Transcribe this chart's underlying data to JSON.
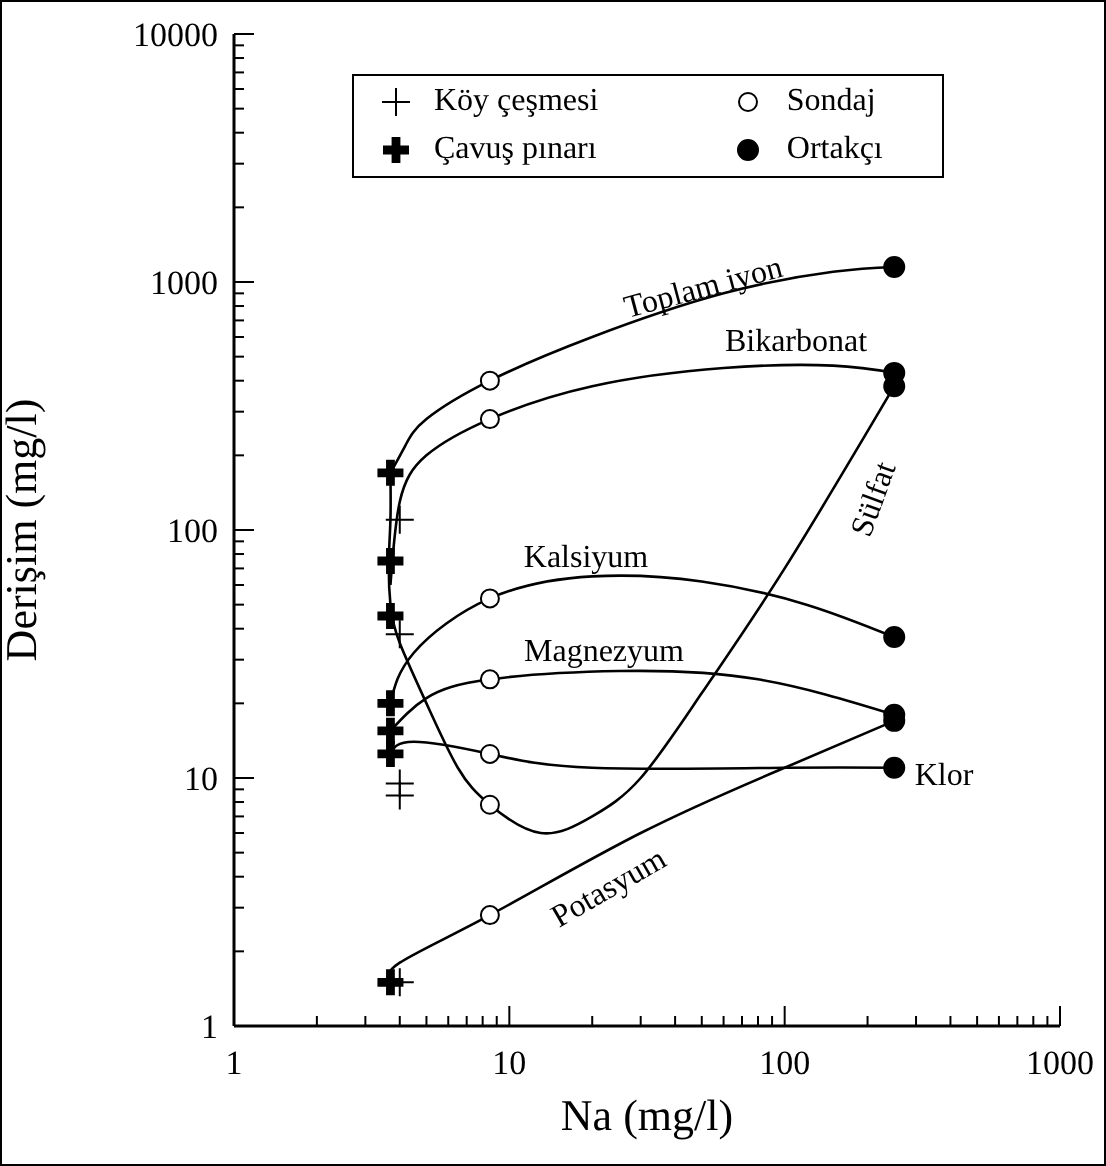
{
  "chart_data": {
    "type": "scatter",
    "xlabel": "Na (mg/l)",
    "ylabel": "Derişim (mg/l)",
    "log": "xy",
    "grid": false,
    "legend": "top",
    "xlim": [
      1,
      1000
    ],
    "xticks": [
      1,
      {
        "value": 2,
        "label": null
      },
      {
        "value": 3,
        "label": null
      },
      {
        "value": 4,
        "label": null
      },
      {
        "value": 5,
        "label": null
      },
      {
        "value": 6,
        "label": null
      },
      {
        "value": 7,
        "label": null
      },
      {
        "value": 8,
        "label": null
      },
      {
        "value": 9,
        "label": null
      },
      10,
      {
        "value": 20,
        "label": null
      },
      {
        "value": 30,
        "label": null
      },
      {
        "value": 40,
        "label": null
      },
      {
        "value": 50,
        "label": null
      },
      {
        "value": 60,
        "label": null
      },
      {
        "value": 70,
        "label": null
      },
      {
        "value": 80,
        "label": null
      },
      {
        "value": 90,
        "label": null
      },
      100,
      {
        "value": 200,
        "label": null
      },
      {
        "value": 300,
        "label": null
      },
      {
        "value": 400,
        "label": null
      },
      {
        "value": 500,
        "label": null
      },
      {
        "value": 600,
        "label": null
      },
      {
        "value": 700,
        "label": null
      },
      {
        "value": 800,
        "label": null
      },
      {
        "value": 900,
        "label": null
      },
      1000
    ],
    "ylim": [
      1,
      10000
    ],
    "yticks": [
      1,
      {
        "value": 2,
        "label": null
      },
      {
        "value": 3,
        "label": null
      },
      {
        "value": 4,
        "label": null
      },
      {
        "value": 5,
        "label": null
      },
      {
        "value": 6,
        "label": null
      },
      {
        "value": 7,
        "label": null
      },
      {
        "value": 8,
        "label": null
      },
      {
        "value": 9,
        "label": null
      },
      10,
      {
        "value": 20,
        "label": null
      },
      {
        "value": 30,
        "label": null
      },
      {
        "value": 40,
        "label": null
      },
      {
        "value": 50,
        "label": null
      },
      {
        "value": 60,
        "label": null
      },
      {
        "value": 70,
        "label": null
      },
      {
        "value": 80,
        "label": null
      },
      {
        "value": 90,
        "label": null
      },
      100,
      {
        "value": 200,
        "label": null
      },
      {
        "value": 300,
        "label": null
      },
      {
        "value": 400,
        "label": null
      },
      {
        "value": 500,
        "label": null
      },
      {
        "value": 600,
        "label": null
      },
      {
        "value": 700,
        "label": null
      },
      {
        "value": 800,
        "label": null
      },
      {
        "value": 900,
        "label": null
      },
      1000,
      {
        "value": 2000,
        "label": null
      },
      {
        "value": 3000,
        "label": null
      },
      {
        "value": 4000,
        "label": null
      },
      {
        "value": 5000,
        "label": null
      },
      {
        "value": 6000,
        "label": null
      },
      {
        "value": 7000,
        "label": null
      },
      {
        "value": 8000,
        "label": null
      },
      {
        "value": 9000,
        "label": null
      },
      10000
    ],
    "series": [
      {
        "type": "line",
        "color": "#000000",
        "marker": "none",
        "x": [
          3.7,
          4.2,
          5,
          8.5,
          20,
          60,
          150,
          250
        ],
        "values": [
          170,
          220,
          280,
          400,
          600,
          900,
          1100,
          1150
        ]
      },
      {
        "type": "line",
        "color": "#000000",
        "marker": "none",
        "x": [
          3.7,
          4,
          5,
          8.5,
          20,
          60,
          150,
          250
        ],
        "values": [
          60,
          130,
          200,
          280,
          380,
          450,
          460,
          430
        ]
      },
      {
        "type": "line",
        "color": "#000000",
        "marker": "none",
        "x": [
          3.7,
          3.7,
          3.65,
          3.7,
          4,
          5,
          6.5,
          8.5,
          13,
          20,
          30,
          50,
          100,
          250
        ],
        "values": [
          170,
          110,
          75,
          50,
          35,
          20,
          11,
          7.8,
          6,
          7,
          10,
          22,
          70,
          380
        ]
      },
      {
        "type": "line",
        "color": "#000000",
        "marker": "none",
        "x": [
          3.7,
          4.5,
          8.5,
          20,
          50,
          120,
          250
        ],
        "values": [
          20,
          32,
          53,
          65,
          62,
          50,
          37
        ]
      },
      {
        "type": "line",
        "color": "#000000",
        "marker": "none",
        "x": [
          3.7,
          5,
          8.5,
          25,
          80,
          250
        ],
        "values": [
          15.5,
          21,
          25,
          27,
          25,
          18
        ]
      },
      {
        "type": "line",
        "color": "#000000",
        "marker": "none",
        "x": [
          3.7,
          4.5,
          8.5,
          20,
          100,
          250
        ],
        "values": [
          12.5,
          14,
          12.5,
          11,
          11,
          11
        ]
      },
      {
        "type": "line",
        "color": "#000000",
        "marker": "none",
        "x": [
          3.7,
          4,
          8.5,
          30,
          100,
          250
        ],
        "values": [
          1.5,
          1.8,
          2.8,
          6,
          11,
          17
        ]
      },
      {
        "type": "scatter",
        "name": "Köy çeşmesi",
        "color": "#000000",
        "marker": "cross",
        "x": [
          4,
          4,
          4,
          4,
          4
        ],
        "values": [
          110,
          38,
          9.5,
          8.5,
          1.5
        ]
      },
      {
        "type": "scatter",
        "name": "Çavuş pınarı",
        "color": "#000000",
        "marker": "cross",
        "x": [
          3.7,
          3.7,
          3.7,
          3.7,
          3.7,
          3.7,
          3.7
        ],
        "values": [
          170,
          75,
          45,
          20,
          15.5,
          12.5,
          1.5
        ]
      },
      {
        "type": "scatter",
        "name": "Sondaj",
        "color": "#000000",
        "marker": "circle",
        "x": [
          8.5,
          8.5,
          8.5,
          8.5,
          8.5,
          8.5,
          8.5
        ],
        "values": [
          400,
          280,
          53,
          25,
          12.5,
          7.8,
          2.8
        ]
      },
      {
        "type": "scatter",
        "name": "Ortakçı",
        "color": "#000000",
        "marker": "circle",
        "x": [
          250,
          250,
          250,
          250,
          250,
          250,
          250
        ],
        "values": [
          1150,
          430,
          380,
          37,
          18,
          17,
          11
        ]
      }
    ],
    "annotations": [
      "Toplam iyon",
      "Bikarbonat",
      "Sülfat",
      "Kalsiyum",
      "Magnezyum",
      "Klor",
      "Potasyum"
    ]
  }
}
